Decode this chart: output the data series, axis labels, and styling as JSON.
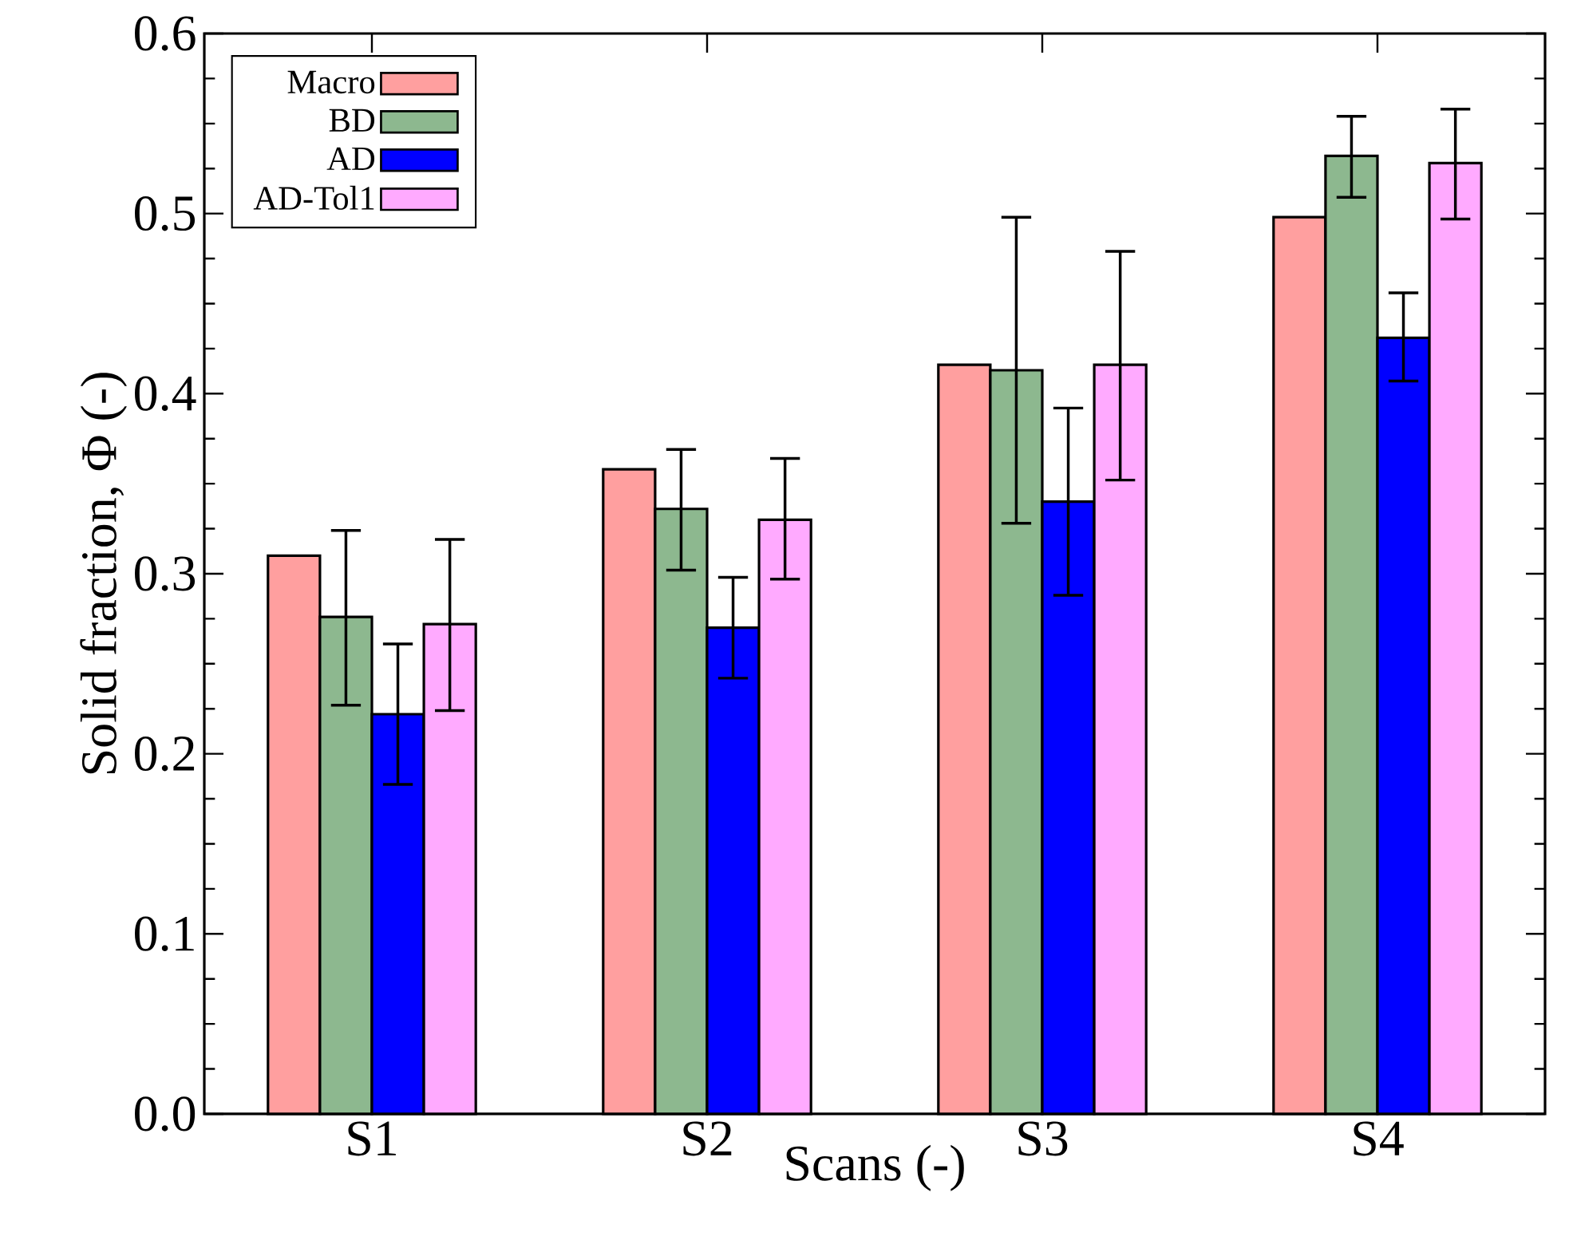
{
  "chart_data": {
    "type": "bar",
    "xlabel": "Scans (-)",
    "ylabel": "Solid fraction, Φ (-)",
    "categories": [
      "S1",
      "S2",
      "S3",
      "S4"
    ],
    "series": [
      {
        "name": "Macro",
        "color": "#ff9f9f",
        "values": [
          0.31,
          0.358,
          0.416,
          0.498
        ]
      },
      {
        "name": "BD",
        "color": "#8db88f",
        "values": [
          0.276,
          0.336,
          0.413,
          0.532
        ],
        "errors": [
          [
            0.227,
            0.324
          ],
          [
            0.302,
            0.369
          ],
          [
            0.328,
            0.498
          ],
          [
            0.509,
            0.554
          ]
        ]
      },
      {
        "name": "AD",
        "color": "#0000ff",
        "values": [
          0.222,
          0.27,
          0.34,
          0.431
        ],
        "errors": [
          [
            0.183,
            0.261
          ],
          [
            0.242,
            0.298
          ],
          [
            0.288,
            0.392
          ],
          [
            0.407,
            0.456
          ]
        ]
      },
      {
        "name": "AD-Tol1",
        "color": "#ffaaff",
        "values": [
          0.272,
          0.33,
          0.416,
          0.528
        ],
        "errors": [
          [
            0.224,
            0.319
          ],
          [
            0.297,
            0.364
          ],
          [
            0.352,
            0.479
          ],
          [
            0.497,
            0.558
          ]
        ]
      }
    ],
    "ylim": [
      0,
      0.6
    ],
    "yticks": [
      {
        "value": 0,
        "label": "0.0"
      },
      0.1,
      0.2,
      0.3,
      0.4,
      0.5,
      0.6
    ],
    "legend": "top left",
    "grid": false
  }
}
